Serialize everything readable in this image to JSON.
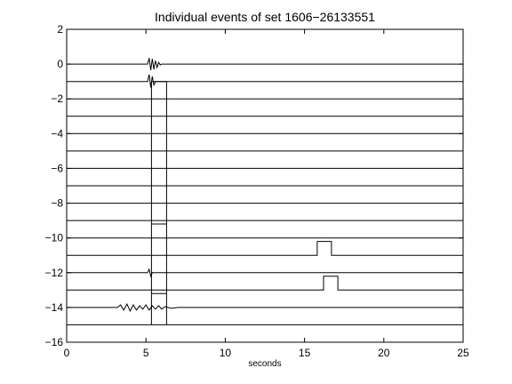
{
  "chart_data": {
    "type": "line",
    "title": "Individual events of set 1606−26133551",
    "xlabel": "seconds",
    "ylabel": "",
    "xlim": [
      0,
      25
    ],
    "ylim": [
      -16,
      2
    ],
    "grid": false,
    "legend": "none",
    "x_ticks": [
      0,
      5,
      10,
      15,
      20,
      25
    ],
    "x_tick_labels": [
      "0",
      "5",
      "10",
      "15",
      "20",
      "25"
    ],
    "y_ticks": [
      2,
      0,
      -2,
      -4,
      -6,
      -8,
      -10,
      -12,
      -14,
      -16
    ],
    "y_tick_labels": [
      "2",
      "0",
      "−2",
      "−4",
      "−6",
      "−8",
      "−10",
      "−12",
      "−14",
      "−16"
    ],
    "line_color": "#000000",
    "pulse": {
      "x_start": 5.35,
      "x_end": 6.3,
      "top": -1,
      "bottom": -15,
      "step_level": -9.2,
      "step_offset": -13.2
    },
    "series": [
      {
        "baseline": 0,
        "x": [
          0,
          5.1,
          5.2,
          5.3,
          5.4,
          5.5,
          5.6,
          5.7,
          5.8,
          5.9,
          6.0,
          25
        ],
        "y": [
          0,
          0,
          0.35,
          -0.35,
          0.3,
          -0.3,
          0.2,
          -0.2,
          0.1,
          -0.05,
          0,
          0
        ]
      },
      {
        "baseline": -1,
        "x": [
          0,
          5.1,
          5.2,
          5.3,
          5.4,
          5.5,
          5.6,
          25
        ],
        "y": [
          -1,
          -1,
          -0.6,
          -1.35,
          -0.7,
          -1.2,
          -1,
          -1
        ]
      },
      {
        "baseline": -2,
        "x": [
          0,
          25
        ],
        "y": [
          -2,
          -2
        ]
      },
      {
        "baseline": -3,
        "x": [
          0,
          25
        ],
        "y": [
          -3,
          -3
        ]
      },
      {
        "baseline": -4,
        "x": [
          0,
          25
        ],
        "y": [
          -4,
          -4
        ]
      },
      {
        "baseline": -5,
        "x": [
          0,
          25
        ],
        "y": [
          -5,
          -5
        ]
      },
      {
        "baseline": -6,
        "x": [
          0,
          25
        ],
        "y": [
          -6,
          -6
        ]
      },
      {
        "baseline": -7,
        "x": [
          0,
          25
        ],
        "y": [
          -7,
          -7
        ]
      },
      {
        "baseline": -8,
        "x": [
          0,
          25
        ],
        "y": [
          -8,
          -8
        ]
      },
      {
        "baseline": -9,
        "x": [
          0,
          25
        ],
        "y": [
          -9,
          -9
        ]
      },
      {
        "baseline": -10,
        "x": [
          0,
          25
        ],
        "y": [
          -10,
          -10
        ]
      },
      {
        "baseline": -11,
        "x": [
          0,
          15.8,
          15.8,
          16.7,
          16.7,
          25
        ],
        "y": [
          -11,
          -11,
          -10.2,
          -10.2,
          -11,
          -11
        ]
      },
      {
        "baseline": -12,
        "x": [
          0,
          5.1,
          5.2,
          5.3,
          5.4,
          25
        ],
        "y": [
          -12,
          -12,
          -11.8,
          -12.2,
          -12,
          -12
        ]
      },
      {
        "baseline": -13,
        "x": [
          0,
          16.2,
          16.2,
          17.1,
          17.1,
          25
        ],
        "y": [
          -13,
          -13,
          -12.2,
          -12.2,
          -13,
          -13
        ]
      },
      {
        "baseline": -14,
        "x": [
          0,
          3.2,
          3.4,
          3.6,
          3.8,
          4.0,
          4.2,
          4.4,
          4.6,
          4.8,
          5.0,
          5.2,
          5.4,
          5.6,
          5.8,
          6.0,
          6.2,
          6.6,
          7.0,
          25
        ],
        "y": [
          -14,
          -14,
          -13.85,
          -14.15,
          -13.8,
          -14.2,
          -13.85,
          -14.15,
          -13.9,
          -14.1,
          -13.85,
          -14.15,
          -13.9,
          -14.1,
          -13.9,
          -14.1,
          -13.95,
          -14.05,
          -14,
          -14
        ]
      },
      {
        "baseline": -15,
        "x": [
          0,
          25
        ],
        "y": [
          -15,
          -15
        ]
      }
    ]
  }
}
